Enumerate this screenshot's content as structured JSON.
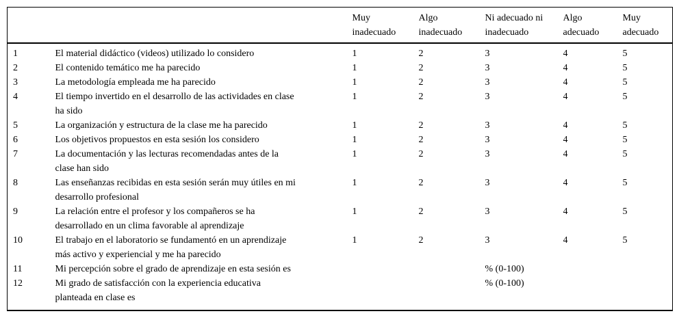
{
  "colors": {
    "text": "#000000",
    "background": "#ffffff",
    "rule": "#000000"
  },
  "table": {
    "headers": {
      "num": "",
      "question": "",
      "scale": [
        "Muy\ninadecuado",
        "Algo\ninadecuado",
        "Ni adecuado ni\ninadecuado",
        "Algo\nadecuado",
        "Muy\nadecuado"
      ]
    },
    "rows": [
      {
        "num": "1",
        "question": "El material didáctico (videos) utilizado lo considero",
        "values": [
          "1",
          "2",
          "3",
          "4",
          "5"
        ]
      },
      {
        "num": "2",
        "question": "El contenido temático me ha parecido",
        "values": [
          "1",
          "2",
          "3",
          "4",
          "5"
        ]
      },
      {
        "num": "3",
        "question": "La metodología empleada me ha parecido",
        "values": [
          "1",
          "2",
          "3",
          "4",
          "5"
        ]
      },
      {
        "num": "4",
        "question": "El tiempo invertido en el desarrollo de las actividades en clase\nha sido",
        "values": [
          "1",
          "2",
          "3",
          "4",
          "5"
        ]
      },
      {
        "num": "5",
        "question": "La organización y estructura de la clase me ha parecido",
        "values": [
          "1",
          "2",
          "3",
          "4",
          "5"
        ]
      },
      {
        "num": "6",
        "question": "Los objetivos propuestos en esta sesión los considero",
        "values": [
          "1",
          "2",
          "3",
          "4",
          "5"
        ]
      },
      {
        "num": "7",
        "question": "La documentación y las lecturas recomendadas antes de la\nclase han sido",
        "values": [
          "1",
          "2",
          "3",
          "4",
          "5"
        ]
      },
      {
        "num": "8",
        "question": "Las enseñanzas recibidas en esta sesión serán muy útiles en mi\ndesarrollo profesional",
        "values": [
          "1",
          "2",
          "3",
          "4",
          "5"
        ]
      },
      {
        "num": "9",
        "question": "La relación entre el profesor y los compañeros se ha\ndesarrollado en un clima favorable al aprendizaje",
        "values": [
          "1",
          "2",
          "3",
          "4",
          "5"
        ]
      },
      {
        "num": "10",
        "question": "El trabajo en el laboratorio se fundamentó en un aprendizaje\nmás activo y experiencial y me ha parecido",
        "values": [
          "1",
          "2",
          "3",
          "4",
          "5"
        ]
      },
      {
        "num": "11",
        "question": "Mi percepción sobre el grado de aprendizaje en esta sesión es",
        "values": [
          "",
          "",
          "% (0-100)",
          "",
          ""
        ]
      },
      {
        "num": "12",
        "question": "Mi grado de satisfacción con la experiencia educativa\nplanteada en clase es",
        "values": [
          "",
          "",
          "% (0-100)",
          "",
          ""
        ]
      }
    ]
  }
}
